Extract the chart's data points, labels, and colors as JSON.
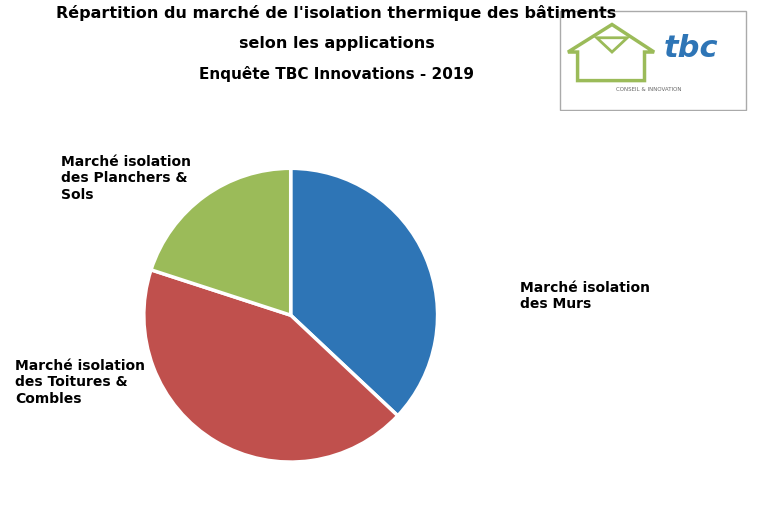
{
  "title_line1": "Répartition du marché de l'isolation thermique des bâtiments",
  "title_line2": "selon les applications",
  "subtitle": "Enquête TBC Innovations - 2019",
  "slices": [
    {
      "label": "Marché isolation\ndes Murs",
      "value": 37,
      "color": "#2E75B6"
    },
    {
      "label": "Marché isolation\ndes Toitures &\nCombles",
      "value": 43,
      "color": "#C0504D"
    },
    {
      "label": "Marché isolation\ndes Planchers &\nSols",
      "value": 20,
      "color": "#9BBB59"
    }
  ],
  "background_color": "#FFFFFF",
  "title_fontsize": 11.5,
  "subtitle_fontsize": 11,
  "label_fontsize": 10,
  "startangle": 90
}
